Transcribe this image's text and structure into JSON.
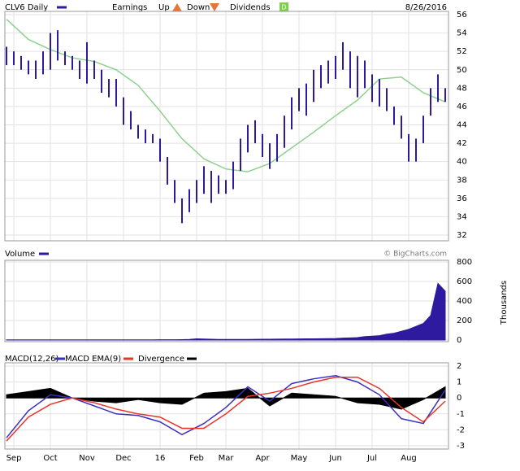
{
  "chart_data": [
    {
      "type": "range",
      "title": "CLV6 Daily",
      "date": "8/26/2016",
      "legend": {
        "earnings": "Earnings",
        "up": "Up",
        "down": "Down",
        "dividends": "Dividends",
        "dividend_marker": "D"
      },
      "color": "#2e1a9e",
      "ma_color": "#8ed08e",
      "xlim": [
        0,
        60
      ],
      "ylim": [
        32,
        56
      ],
      "yticks": [
        32,
        34,
        36,
        38,
        40,
        42,
        44,
        46,
        48,
        50,
        52,
        54,
        56
      ],
      "grid": true,
      "x": [
        0,
        1,
        2,
        3,
        4,
        5,
        6,
        7,
        8,
        9,
        10,
        11,
        12,
        13,
        14,
        15,
        16,
        17,
        18,
        19,
        20,
        21,
        22,
        23,
        24,
        25,
        26,
        27,
        28,
        29,
        30,
        31,
        32,
        33,
        34,
        35,
        36,
        37,
        38,
        39,
        40,
        41,
        42,
        43,
        44,
        45,
        46,
        47,
        48,
        49,
        50,
        51,
        52,
        53,
        54,
        55,
        56,
        57,
        58,
        59,
        60
      ],
      "high": [
        52.5,
        52,
        51.5,
        51,
        51,
        52,
        54,
        54.3,
        52,
        51.5,
        51,
        53,
        51,
        50,
        49,
        49,
        47,
        45.5,
        44,
        43.5,
        43,
        42.5,
        40.5,
        38,
        36,
        37,
        38,
        39.5,
        39,
        38.5,
        38,
        40,
        42.5,
        44,
        44.5,
        43,
        42,
        43,
        45,
        47,
        48,
        48.5,
        50,
        50.5,
        51,
        51.5,
        53,
        52,
        51.5,
        51,
        49.5,
        49,
        48,
        46,
        45,
        43,
        42.5,
        45,
        48,
        49.5,
        48
      ],
      "low": [
        50.5,
        50.5,
        50,
        49.5,
        49,
        49.5,
        50,
        51,
        50.5,
        50,
        49,
        48.5,
        49,
        47.5,
        47,
        46,
        44,
        43.5,
        42.5,
        42,
        42,
        40,
        37.5,
        35.5,
        33.3,
        34.5,
        35.5,
        36.5,
        35.5,
        36.5,
        36.5,
        37,
        39,
        41,
        42,
        40.5,
        39.2,
        40,
        41.5,
        43.5,
        45.5,
        45,
        46.5,
        48,
        48.5,
        49,
        50,
        48,
        47,
        48,
        46.5,
        46,
        45.5,
        44,
        42.5,
        40,
        40,
        42,
        45,
        46.5,
        46.5
      ],
      "ma": {
        "x": [
          0,
          3,
          6,
          9,
          12,
          15,
          18,
          21,
          24,
          27,
          30,
          33,
          36,
          39,
          42,
          45,
          48,
          51,
          54,
          57,
          60
        ],
        "values": [
          55.5,
          53.3,
          52.2,
          51.3,
          50.9,
          50,
          48.3,
          45.5,
          42.5,
          40.3,
          39.2,
          38.9,
          39.8,
          41.5,
          43.2,
          45,
          46.7,
          49,
          49.2,
          47.5,
          46.5
        ]
      }
    },
    {
      "type": "area",
      "title": "Volume",
      "source": "© BigCharts.com",
      "ylabel": "Thousands",
      "color": "#2e1a9e",
      "ylim": [
        0,
        800
      ],
      "yticks": [
        0,
        200,
        400,
        600,
        800
      ],
      "values": [
        2,
        2,
        2,
        2,
        2,
        2,
        2,
        2,
        2,
        2,
        2,
        2,
        2,
        2,
        2,
        2,
        2,
        2,
        2,
        2,
        2,
        3,
        3,
        3,
        4,
        6,
        12,
        10,
        8,
        6,
        6,
        6,
        6,
        6,
        7,
        8,
        8,
        9,
        10,
        10,
        11,
        12,
        13,
        14,
        15,
        16,
        20,
        22,
        25,
        35,
        40,
        45,
        60,
        70,
        90,
        110,
        140,
        170,
        250,
        580,
        500
      ]
    },
    {
      "type": "line",
      "ylim": [
        -3,
        2
      ],
      "yticks": [
        -3,
        -2,
        -1,
        0,
        1,
        2
      ],
      "xticks": [
        {
          "value": 1,
          "label": "Sep"
        },
        {
          "value": 6,
          "label": "Oct"
        },
        {
          "value": 11,
          "label": "Nov"
        },
        {
          "value": 16,
          "label": "Dec"
        },
        {
          "value": 21,
          "label": "16"
        },
        {
          "value": 26,
          "label": "Feb"
        },
        {
          "value": 30,
          "label": "Mar"
        },
        {
          "value": 35,
          "label": "Apr"
        },
        {
          "value": 40,
          "label": "May"
        },
        {
          "value": 45,
          "label": "Jun"
        },
        {
          "value": 50,
          "label": "Jul"
        },
        {
          "value": 55,
          "label": "Aug"
        }
      ],
      "x": [
        0,
        3,
        6,
        9,
        12,
        15,
        18,
        21,
        24,
        27,
        30,
        33,
        36,
        39,
        42,
        45,
        48,
        51,
        54,
        57,
        60
      ],
      "series": [
        {
          "name": "MACD(12,26)",
          "color": "#3a2fc0",
          "values": [
            -2.5,
            -0.8,
            0.2,
            0,
            -0.5,
            -1,
            -1.1,
            -1.5,
            -2.3,
            -1.6,
            -0.6,
            0.7,
            -0.2,
            0.9,
            1.2,
            1.4,
            1,
            0.2,
            -1.3,
            -1.6,
            0.5
          ]
        },
        {
          "name": "MACD EMA(9)",
          "color": "#e8342a",
          "values": [
            -2.7,
            -1.2,
            -0.4,
            0,
            -0.3,
            -0.7,
            -1,
            -1.2,
            -1.9,
            -1.9,
            -1,
            0.1,
            0.3,
            0.6,
            1,
            1.3,
            1.3,
            0.6,
            -0.6,
            -1.5,
            -0.2
          ]
        },
        {
          "name": "Divergence",
          "color": "#000000",
          "kind": "area",
          "values": [
            0.2,
            0.4,
            0.6,
            0,
            -0.2,
            -0.3,
            -0.1,
            -0.3,
            -0.4,
            0.3,
            0.4,
            0.6,
            -0.5,
            0.3,
            0.2,
            0.1,
            -0.3,
            -0.4,
            -0.7,
            -0.1,
            0.7
          ]
        }
      ]
    }
  ]
}
